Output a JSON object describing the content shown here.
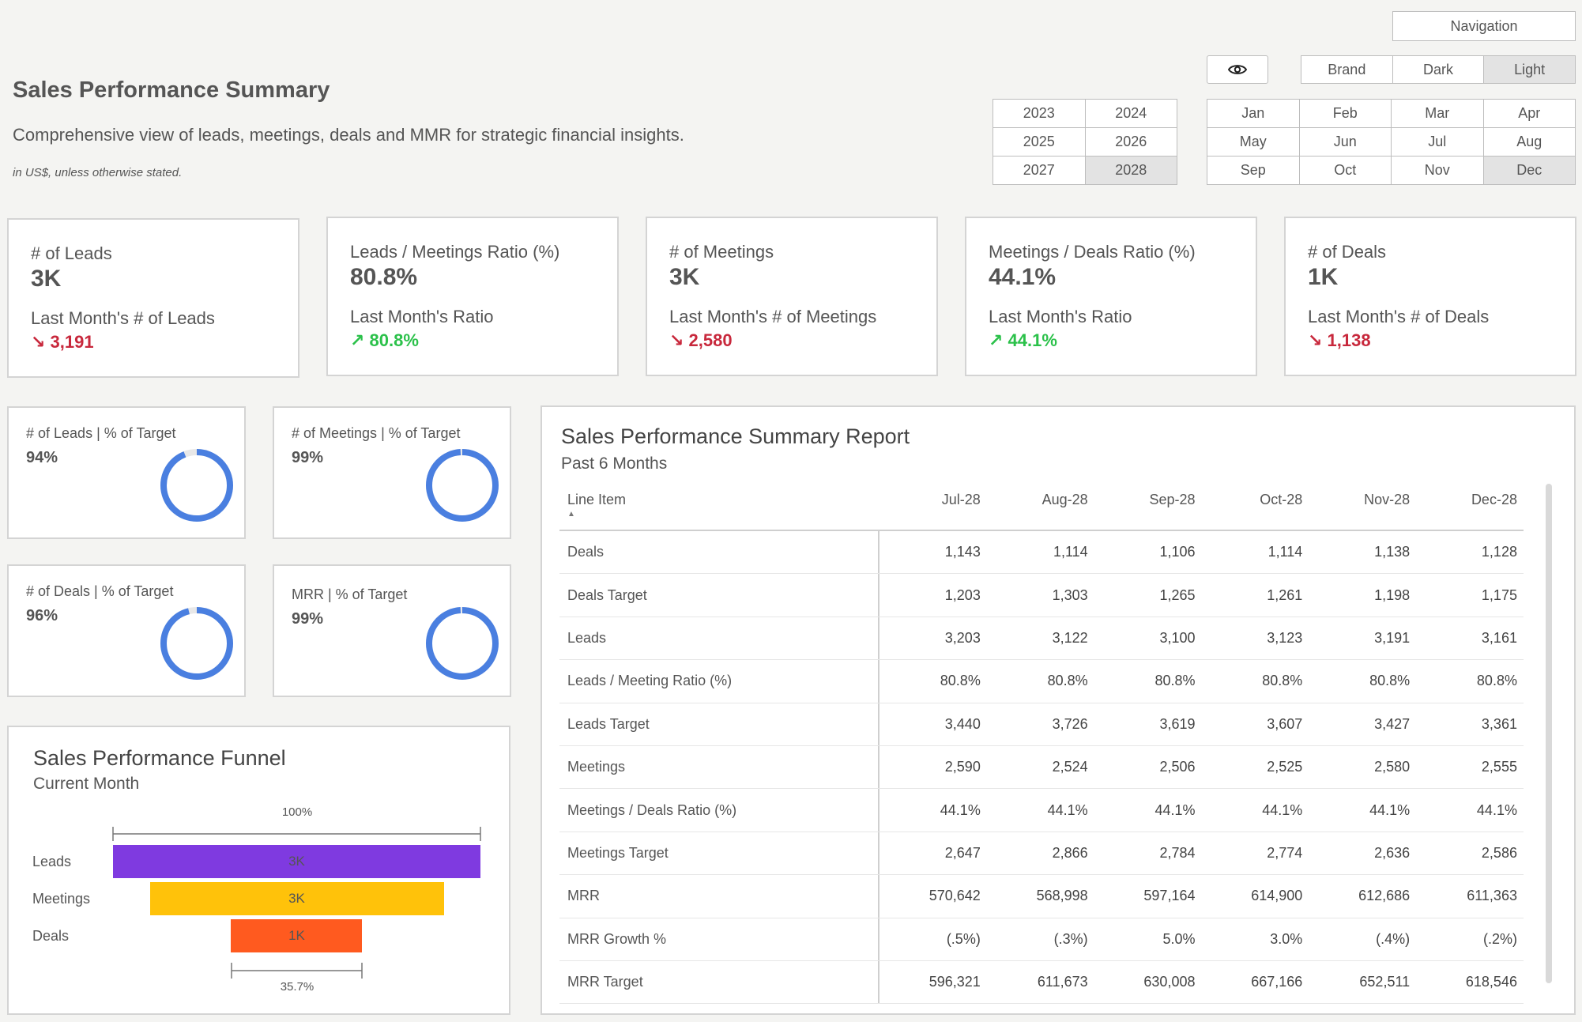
{
  "header": {
    "title": "Sales Performance Summary",
    "subtitle": "Comprehensive view of leads, meetings, deals and MMR for strategic financial insights.",
    "note": "in US$, unless otherwise stated."
  },
  "controls": {
    "navigation_label": "Navigation",
    "visibility_icon": "eye-icon",
    "themes": [
      "Brand",
      "Dark",
      "Light"
    ],
    "selected_theme": "Light",
    "years": [
      "2023",
      "2024",
      "2025",
      "2026",
      "2027",
      "2028"
    ],
    "selected_year": "2028",
    "months": [
      "Jan",
      "Feb",
      "Mar",
      "Apr",
      "May",
      "Jun",
      "Jul",
      "Aug",
      "Sep",
      "Oct",
      "Nov",
      "Dec"
    ],
    "selected_month": "Dec"
  },
  "kpis": [
    {
      "label": "# of Leads",
      "value": "3K",
      "sub_label": "Last Month's # of Leads",
      "delta": "↘ 3,191",
      "trend": "down"
    },
    {
      "label": "Leads / Meetings Ratio (%)",
      "value": "80.8%",
      "sub_label": "Last Month's Ratio",
      "delta": "↗ 80.8%",
      "trend": "up"
    },
    {
      "label": "# of Meetings",
      "value": "3K",
      "sub_label": "Last Month's # of Meetings",
      "delta": "↘ 2,580",
      "trend": "down"
    },
    {
      "label": "Meetings / Deals Ratio (%)",
      "value": "44.1%",
      "sub_label": "Last Month's Ratio",
      "delta": "↗ 44.1%",
      "trend": "up"
    },
    {
      "label": "# of Deals",
      "value": "1K",
      "sub_label": "Last Month's # of Deals",
      "delta": "↘ 1,138",
      "trend": "down"
    }
  ],
  "targets": [
    {
      "label": "# of Leads | % of Target",
      "value": "94%",
      "fraction": 0.94
    },
    {
      "label": "# of Meetings | % of Target",
      "value": "99%",
      "fraction": 0.99
    },
    {
      "label": "# of Deals | % of Target",
      "value": "96%",
      "fraction": 0.96
    },
    {
      "label": "MRR | % of Target",
      "value": "99%",
      "fraction": 0.99
    }
  ],
  "colors": {
    "donut": "#4a7fe0",
    "donut_track": "#e8e8e8",
    "leads_bar": "#7f3ae0",
    "meetings_bar": "#ffc20a",
    "deals_bar": "#ff5a1f",
    "down": "#c8283c",
    "up": "#2bc14a"
  },
  "funnel": {
    "title": "Sales Performance Funnel",
    "subtitle": "Current Month",
    "top_pct": "100%",
    "bottom_pct": "35.7%",
    "stages": [
      {
        "label": "Leads",
        "bar_label": "3K",
        "fraction": 1.0
      },
      {
        "label": "Meetings",
        "bar_label": "3K",
        "fraction": 0.8
      },
      {
        "label": "Deals",
        "bar_label": "1K",
        "fraction": 0.357
      }
    ]
  },
  "report": {
    "title": "Sales Performance Summary Report",
    "subtitle": "Past 6 Months",
    "columns": [
      "Line Item",
      "Jul-28",
      "Aug-28",
      "Sep-28",
      "Oct-28",
      "Nov-28",
      "Dec-28"
    ],
    "rows": [
      [
        "Deals",
        "1,143",
        "1,114",
        "1,106",
        "1,114",
        "1,138",
        "1,128"
      ],
      [
        "Deals Target",
        "1,203",
        "1,303",
        "1,265",
        "1,261",
        "1,198",
        "1,175"
      ],
      [
        "Leads",
        "3,203",
        "3,122",
        "3,100",
        "3,123",
        "3,191",
        "3,161"
      ],
      [
        "Leads / Meeting Ratio (%)",
        "80.8%",
        "80.8%",
        "80.8%",
        "80.8%",
        "80.8%",
        "80.8%"
      ],
      [
        "Leads Target",
        "3,440",
        "3,726",
        "3,619",
        "3,607",
        "3,427",
        "3,361"
      ],
      [
        "Meetings",
        "2,590",
        "2,524",
        "2,506",
        "2,525",
        "2,580",
        "2,555"
      ],
      [
        "Meetings / Deals Ratio (%)",
        "44.1%",
        "44.1%",
        "44.1%",
        "44.1%",
        "44.1%",
        "44.1%"
      ],
      [
        "Meetings Target",
        "2,647",
        "2,866",
        "2,784",
        "2,774",
        "2,636",
        "2,586"
      ],
      [
        "MRR",
        "570,642",
        "568,998",
        "597,164",
        "614,900",
        "612,686",
        "611,363"
      ],
      [
        "MRR Growth %",
        "(.5%)",
        "(.3%)",
        "5.0%",
        "3.0%",
        "(.4%)",
        "(.2%)"
      ],
      [
        "MRR Target",
        "596,321",
        "611,673",
        "630,008",
        "667,166",
        "652,511",
        "618,546"
      ]
    ]
  }
}
